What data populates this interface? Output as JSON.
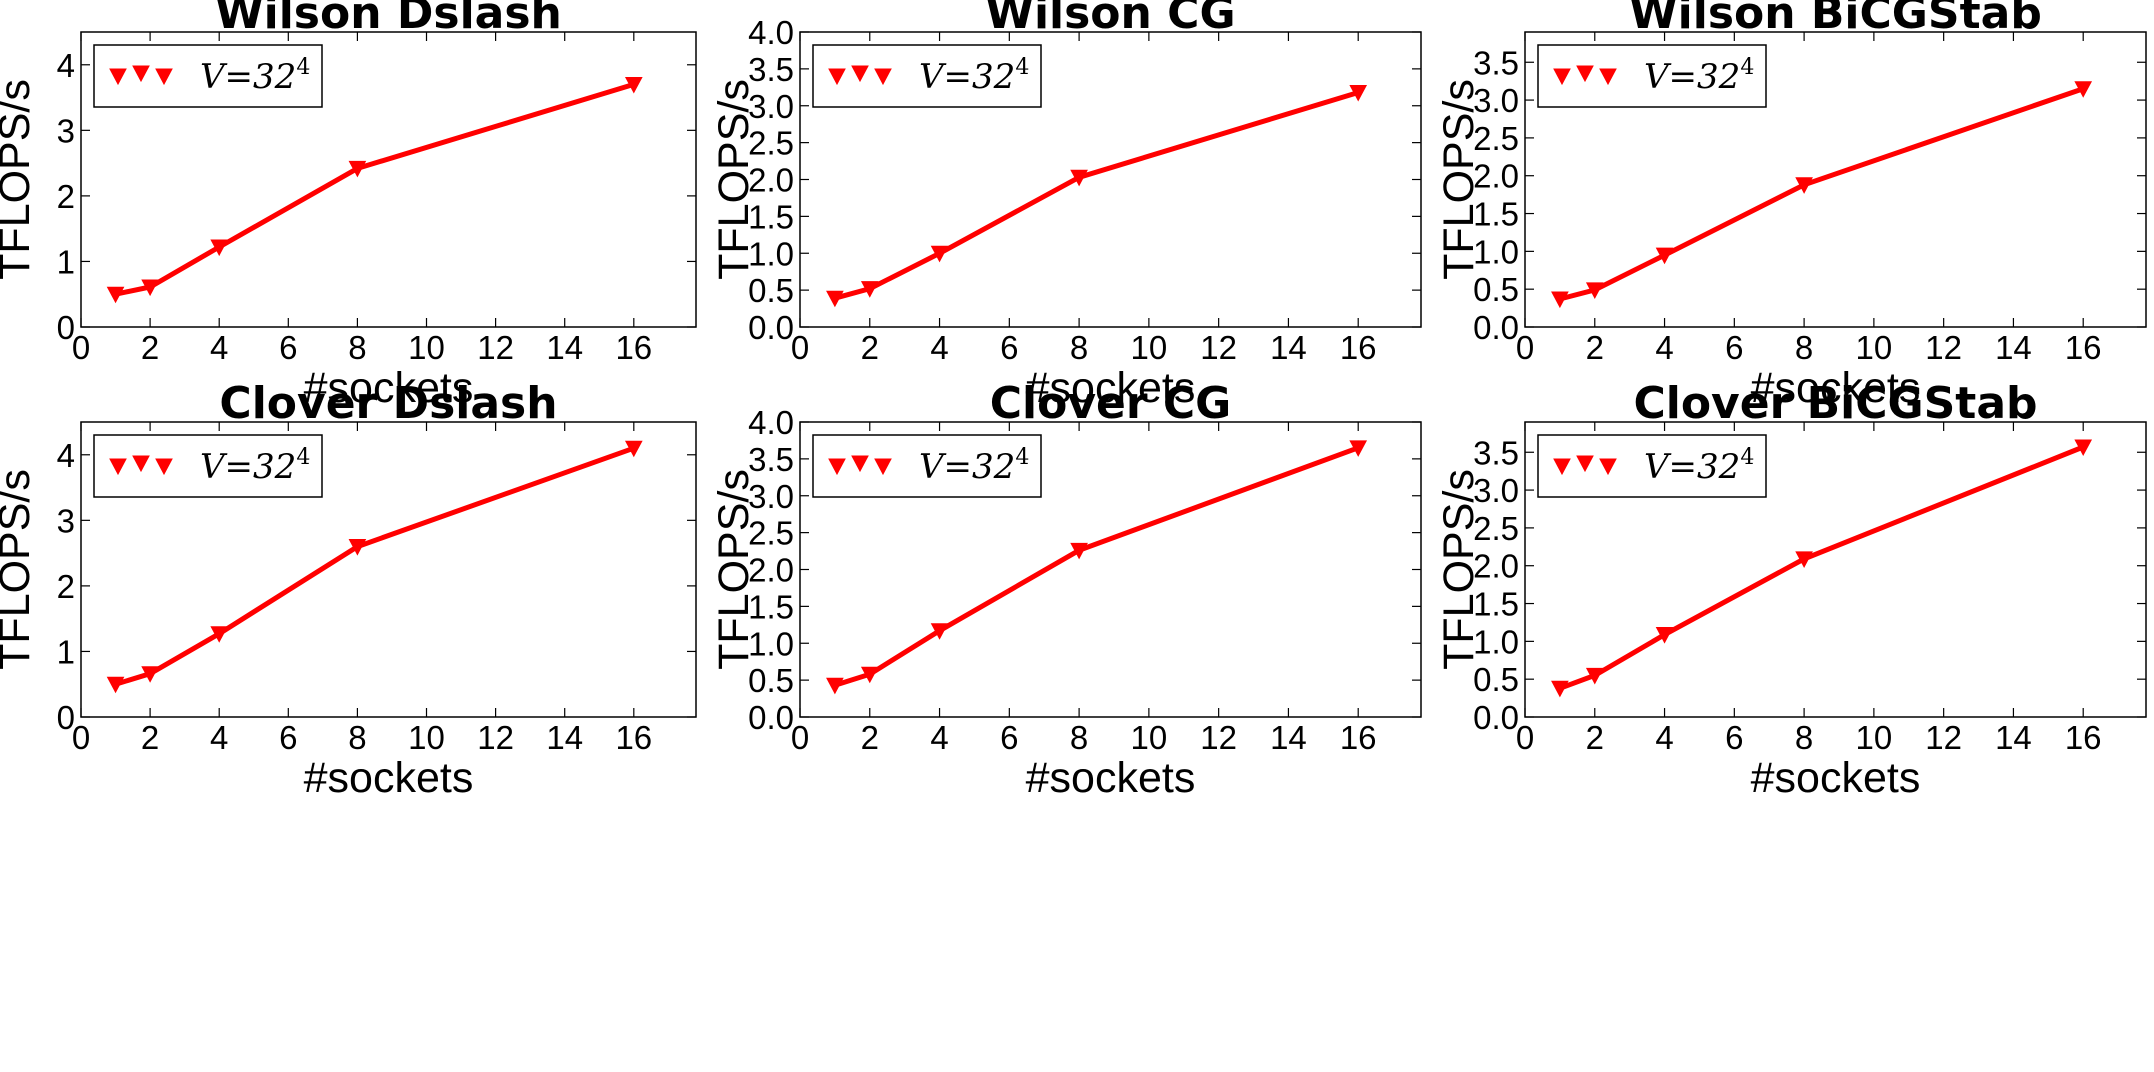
{
  "chart_data": [
    {
      "type": "line",
      "title": "Wilson Dslash",
      "xlabel": "#sockets",
      "ylabel": "TFLOPS/s",
      "xlim": [
        0,
        17.8
      ],
      "ylim": [
        0,
        4.5
      ],
      "xticks": [
        "0",
        "2",
        "4",
        "6",
        "8",
        "10",
        "12",
        "14",
        "16"
      ],
      "yticks": [
        "0",
        "1",
        "2",
        "3",
        "4"
      ],
      "legend_position": "top-left",
      "series": [
        {
          "name": "V=32",
          "name_sup": "4",
          "color": "#ff0000",
          "marker": "triangle-down",
          "x": [
            1,
            2,
            4,
            8,
            16
          ],
          "y": [
            0.5,
            0.61,
            1.22,
            2.42,
            3.7
          ]
        }
      ]
    },
    {
      "type": "line",
      "title": "Wilson CG",
      "xlabel": "#sockets",
      "ylabel": "TFLOPS/s",
      "xlim": [
        0,
        17.8
      ],
      "ylim": [
        0,
        4.0
      ],
      "xticks": [
        "0",
        "2",
        "4",
        "6",
        "8",
        "10",
        "12",
        "14",
        "16"
      ],
      "yticks": [
        "0.0",
        "0.5",
        "1.0",
        "1.5",
        "2.0",
        "2.5",
        "3.0",
        "3.5",
        "4.0"
      ],
      "legend_position": "top-left",
      "series": [
        {
          "name": "V=32",
          "name_sup": "4",
          "color": "#ff0000",
          "marker": "triangle-down",
          "x": [
            1,
            2,
            4,
            8,
            16
          ],
          "y": [
            0.39,
            0.52,
            1.0,
            2.03,
            3.18
          ]
        }
      ]
    },
    {
      "type": "line",
      "title": "Wilson BiCGStab",
      "xlabel": "#sockets",
      "ylabel": "TFLOPS/s",
      "xlim": [
        0,
        17.8
      ],
      "ylim": [
        0,
        3.9
      ],
      "xticks": [
        "0",
        "2",
        "4",
        "6",
        "8",
        "10",
        "12",
        "14",
        "16"
      ],
      "yticks": [
        "0.0",
        "0.5",
        "1.0",
        "1.5",
        "2.0",
        "2.5",
        "3.0",
        "3.5"
      ],
      "legend_position": "top-left",
      "series": [
        {
          "name": "V=32",
          "name_sup": "4",
          "color": "#ff0000",
          "marker": "triangle-down",
          "x": [
            1,
            2,
            4,
            8,
            16
          ],
          "y": [
            0.37,
            0.49,
            0.95,
            1.88,
            3.15
          ]
        }
      ]
    },
    {
      "type": "line",
      "title": "Clover Dslash",
      "xlabel": "#sockets",
      "ylabel": "TFLOPS/s",
      "xlim": [
        0,
        17.8
      ],
      "ylim": [
        0,
        4.5
      ],
      "xticks": [
        "0",
        "2",
        "4",
        "6",
        "8",
        "10",
        "12",
        "14",
        "16"
      ],
      "yticks": [
        "0",
        "1",
        "2",
        "3",
        "4"
      ],
      "legend_position": "top-left",
      "series": [
        {
          "name": "V=32",
          "name_sup": "4",
          "color": "#ff0000",
          "marker": "triangle-down",
          "x": [
            1,
            2,
            4,
            8,
            16
          ],
          "y": [
            0.5,
            0.66,
            1.27,
            2.6,
            4.1
          ]
        }
      ]
    },
    {
      "type": "line",
      "title": "Clover CG",
      "xlabel": "#sockets",
      "ylabel": "TFLOPS/s",
      "xlim": [
        0,
        17.8
      ],
      "ylim": [
        0,
        4.0
      ],
      "xticks": [
        "0",
        "2",
        "4",
        "6",
        "8",
        "10",
        "12",
        "14",
        "16"
      ],
      "yticks": [
        "0.0",
        "0.5",
        "1.0",
        "1.5",
        "2.0",
        "2.5",
        "3.0",
        "3.5",
        "4.0"
      ],
      "legend_position": "top-left",
      "series": [
        {
          "name": "V=32",
          "name_sup": "4",
          "color": "#ff0000",
          "marker": "triangle-down",
          "x": [
            1,
            2,
            4,
            8,
            16
          ],
          "y": [
            0.43,
            0.58,
            1.17,
            2.26,
            3.65
          ]
        }
      ]
    },
    {
      "type": "line",
      "title": "Clover BiCGStab",
      "xlabel": "#sockets",
      "ylabel": "TFLOPS/s",
      "xlim": [
        0,
        17.8
      ],
      "ylim": [
        0,
        3.9
      ],
      "xticks": [
        "0",
        "2",
        "4",
        "6",
        "8",
        "10",
        "12",
        "14",
        "16"
      ],
      "yticks": [
        "0.0",
        "0.5",
        "1.0",
        "1.5",
        "2.0",
        "2.5",
        "3.0",
        "3.5"
      ],
      "legend_position": "top-left",
      "series": [
        {
          "name": "V=32",
          "name_sup": "4",
          "color": "#ff0000",
          "marker": "triangle-down",
          "x": [
            1,
            2,
            4,
            8,
            16
          ],
          "y": [
            0.38,
            0.55,
            1.09,
            2.09,
            3.57
          ]
        }
      ]
    }
  ]
}
